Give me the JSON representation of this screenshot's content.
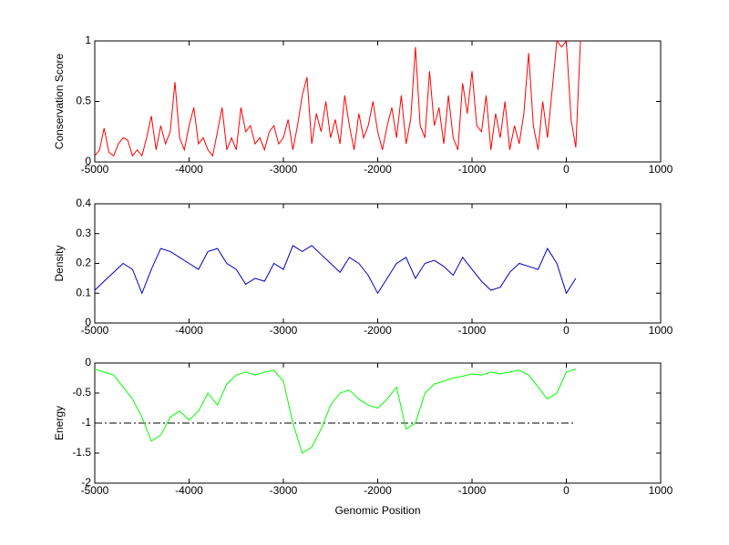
{
  "chart_data": [
    {
      "type": "line",
      "ylabel": "Conservation Score",
      "color": "#ff0000",
      "x": [
        -5000,
        -4950,
        -4900,
        -4850,
        -4800,
        -4750,
        -4700,
        -4650,
        -4600,
        -4550,
        -4500,
        -4450,
        -4400,
        -4350,
        -4300,
        -4250,
        -4200,
        -4150,
        -4100,
        -4050,
        -4000,
        -3950,
        -3900,
        -3850,
        -3800,
        -3750,
        -3700,
        -3650,
        -3600,
        -3550,
        -3500,
        -3450,
        -3400,
        -3350,
        -3300,
        -3250,
        -3200,
        -3150,
        -3100,
        -3050,
        -3000,
        -2950,
        -2900,
        -2850,
        -2800,
        -2750,
        -2700,
        -2650,
        -2600,
        -2550,
        -2500,
        -2450,
        -2400,
        -2350,
        -2300,
        -2250,
        -2200,
        -2150,
        -2100,
        -2050,
        -2000,
        -1950,
        -1900,
        -1850,
        -1800,
        -1750,
        -1700,
        -1650,
        -1600,
        -1550,
        -1500,
        -1450,
        -1400,
        -1350,
        -1300,
        -1250,
        -1200,
        -1150,
        -1100,
        -1050,
        -1000,
        -950,
        -900,
        -850,
        -800,
        -750,
        -700,
        -650,
        -600,
        -550,
        -500,
        -450,
        -400,
        -350,
        -300,
        -250,
        -200,
        -150,
        -100,
        -50,
        0,
        50,
        100,
        150
      ],
      "values": [
        0.05,
        0.1,
        0.28,
        0.08,
        0.05,
        0.15,
        0.2,
        0.18,
        0.05,
        0.1,
        0.05,
        0.2,
        0.38,
        0.1,
        0.3,
        0.15,
        0.25,
        0.66,
        0.2,
        0.1,
        0.3,
        0.45,
        0.15,
        0.2,
        0.1,
        0.05,
        0.25,
        0.45,
        0.1,
        0.2,
        0.1,
        0.45,
        0.25,
        0.3,
        0.15,
        0.2,
        0.1,
        0.25,
        0.3,
        0.15,
        0.2,
        0.35,
        0.1,
        0.3,
        0.55,
        0.7,
        0.15,
        0.4,
        0.25,
        0.5,
        0.2,
        0.35,
        0.15,
        0.55,
        0.3,
        0.1,
        0.4,
        0.2,
        0.3,
        0.5,
        0.25,
        0.1,
        0.3,
        0.45,
        0.2,
        0.55,
        0.15,
        0.35,
        0.95,
        0.3,
        0.2,
        0.75,
        0.3,
        0.45,
        0.15,
        0.55,
        0.2,
        0.1,
        0.65,
        0.4,
        0.75,
        0.3,
        0.25,
        0.55,
        0.1,
        0.4,
        0.2,
        0.5,
        0.1,
        0.3,
        0.15,
        0.4,
        0.9,
        0.3,
        0.1,
        0.5,
        0.2,
        0.6,
        1,
        0.95,
        1,
        0.35,
        0.12,
        1
      ],
      "xlim": [
        -5000,
        1000
      ],
      "xticks": [
        -5000,
        -4000,
        -3000,
        -2000,
        -1000,
        0,
        1000
      ],
      "ylim": [
        0,
        1
      ],
      "yticks": [
        0,
        0.5,
        1
      ]
    },
    {
      "type": "line",
      "ylabel": "Density",
      "color": "#0000c0",
      "x": [
        -5000,
        -4900,
        -4800,
        -4700,
        -4600,
        -4500,
        -4400,
        -4300,
        -4200,
        -4100,
        -4000,
        -3900,
        -3800,
        -3700,
        -3600,
        -3500,
        -3400,
        -3300,
        -3200,
        -3100,
        -3000,
        -2900,
        -2800,
        -2700,
        -2600,
        -2500,
        -2400,
        -2300,
        -2200,
        -2100,
        -2000,
        -1900,
        -1800,
        -1700,
        -1600,
        -1500,
        -1400,
        -1300,
        -1200,
        -1100,
        -1000,
        -900,
        -800,
        -700,
        -600,
        -500,
        -400,
        -300,
        -200,
        -100,
        0,
        100
      ],
      "values": [
        0.11,
        0.14,
        0.17,
        0.2,
        0.18,
        0.1,
        0.18,
        0.25,
        0.24,
        0.22,
        0.2,
        0.18,
        0.24,
        0.25,
        0.2,
        0.18,
        0.13,
        0.15,
        0.14,
        0.2,
        0.18,
        0.26,
        0.24,
        0.26,
        0.23,
        0.2,
        0.17,
        0.22,
        0.2,
        0.16,
        0.1,
        0.15,
        0.2,
        0.22,
        0.15,
        0.2,
        0.21,
        0.19,
        0.16,
        0.22,
        0.18,
        0.14,
        0.11,
        0.12,
        0.17,
        0.2,
        0.19,
        0.18,
        0.25,
        0.2,
        0.1,
        0.15
      ],
      "xlim": [
        -5000,
        1000
      ],
      "xticks": [
        -5000,
        -4000,
        -3000,
        -2000,
        -1000,
        0,
        1000
      ],
      "ylim": [
        0,
        0.4
      ],
      "yticks": [
        0,
        0.1,
        0.2,
        0.3,
        0.4
      ]
    },
    {
      "type": "line",
      "ylabel": "Energy",
      "xlabel": "Genomic Position",
      "color": "#00ff00",
      "reference_line": -1,
      "x": [
        -5000,
        -4900,
        -4800,
        -4700,
        -4600,
        -4500,
        -4400,
        -4300,
        -4200,
        -4100,
        -4000,
        -3900,
        -3800,
        -3700,
        -3600,
        -3500,
        -3400,
        -3300,
        -3200,
        -3100,
        -3000,
        -2900,
        -2800,
        -2700,
        -2600,
        -2500,
        -2400,
        -2300,
        -2200,
        -2100,
        -2000,
        -1900,
        -1800,
        -1700,
        -1600,
        -1500,
        -1400,
        -1300,
        -1200,
        -1100,
        -1000,
        -900,
        -800,
        -700,
        -600,
        -500,
        -400,
        -300,
        -200,
        -100,
        0,
        100
      ],
      "values": [
        -0.1,
        -0.15,
        -0.2,
        -0.4,
        -0.6,
        -0.9,
        -1.3,
        -1.2,
        -0.9,
        -0.8,
        -0.95,
        -0.8,
        -0.5,
        -0.7,
        -0.35,
        -0.2,
        -0.15,
        -0.2,
        -0.15,
        -0.12,
        -0.3,
        -1,
        -1.5,
        -1.4,
        -1.1,
        -0.7,
        -0.5,
        -0.45,
        -0.6,
        -0.7,
        -0.75,
        -0.6,
        -0.4,
        -1.1,
        -1,
        -0.5,
        -0.35,
        -0.3,
        -0.25,
        -0.22,
        -0.18,
        -0.2,
        -0.15,
        -0.18,
        -0.15,
        -0.12,
        -0.2,
        -0.4,
        -0.6,
        -0.5,
        -0.15,
        -0.1
      ],
      "xlim": [
        -5000,
        1000
      ],
      "xticks": [
        -5000,
        -4000,
        -3000,
        -2000,
        -1000,
        0,
        1000
      ],
      "ylim": [
        -2,
        0
      ],
      "yticks": [
        -2,
        -1.5,
        -1,
        -0.5,
        0
      ]
    }
  ]
}
